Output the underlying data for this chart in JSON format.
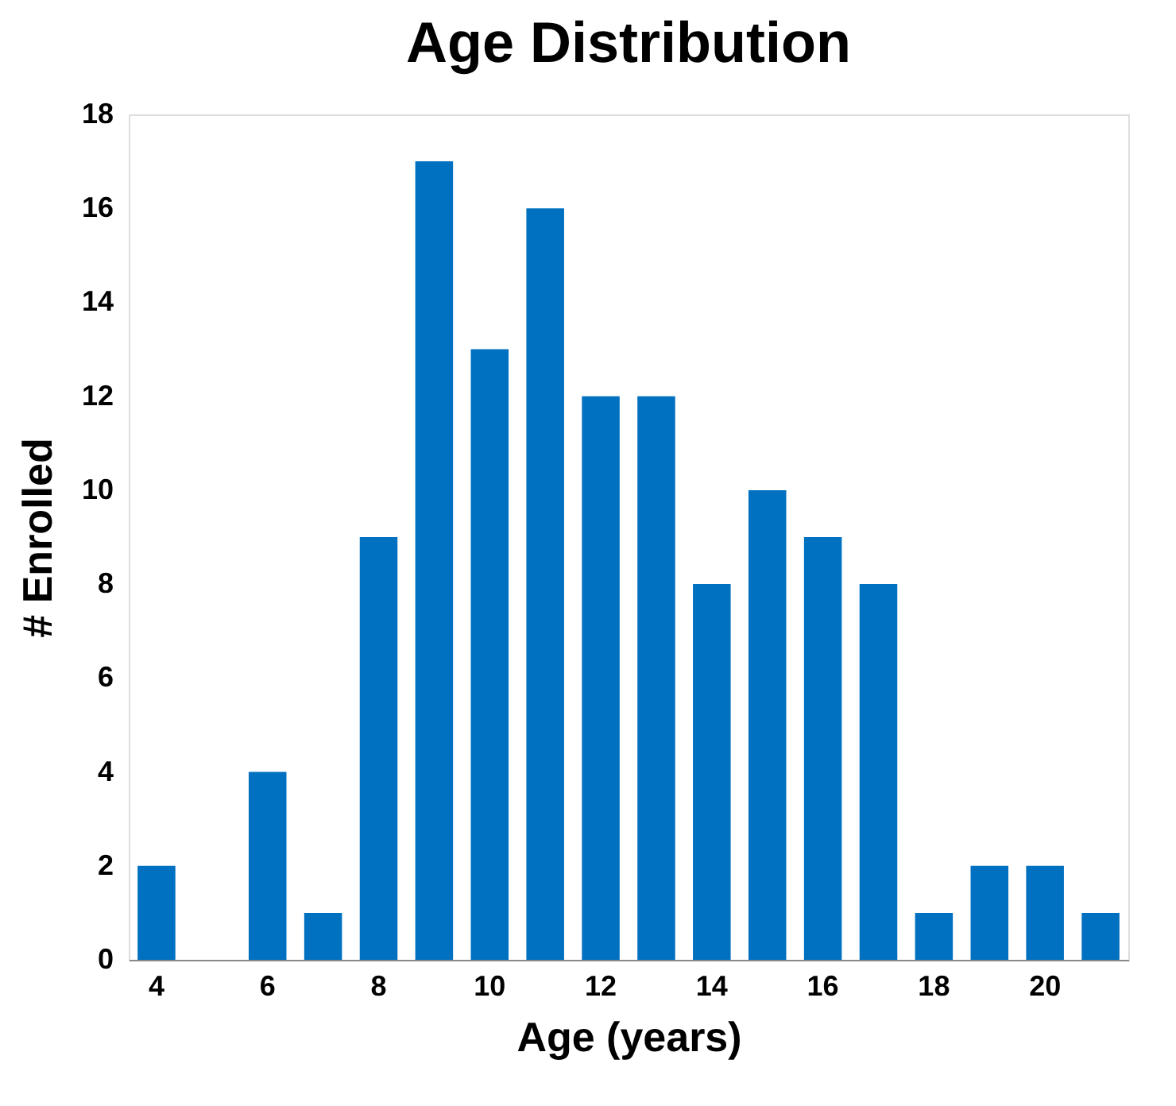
{
  "chart_data": {
    "type": "bar",
    "title": "Age Distribution",
    "xlabel": "Age (years)",
    "ylabel": "# Enrolled",
    "categories": [
      "4",
      null,
      "6",
      null,
      "8",
      null,
      "10",
      null,
      "12",
      null,
      "14",
      null,
      "16",
      null,
      "18",
      null,
      "20",
      null
    ],
    "values": [
      2,
      0,
      4,
      1,
      9,
      17,
      13,
      16,
      12,
      12,
      8,
      10,
      9,
      8,
      1,
      2,
      2,
      1
    ],
    "color": "#0070c0",
    "ylim": [
      0,
      18
    ],
    "yticks": [
      0,
      2,
      4,
      6,
      8,
      10,
      12,
      14,
      16,
      18
    ],
    "grid": false,
    "legend": false
  }
}
